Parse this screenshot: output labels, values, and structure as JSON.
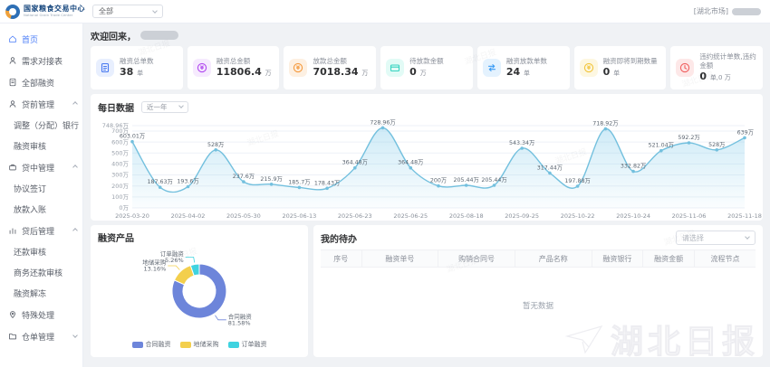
{
  "brand": {
    "title": "国家粮食交易中心",
    "subtitle": "National Grain Trade Center"
  },
  "topbar": {
    "org_filter": "全部",
    "market_tag": "[湖北市场]"
  },
  "sidebar": {
    "items": [
      {
        "label": "首页"
      },
      {
        "label": "需求对接表"
      },
      {
        "label": "全部融资"
      },
      {
        "label": "贷前管理"
      },
      {
        "label": "调整（分配）银行"
      },
      {
        "label": "融资审核"
      },
      {
        "label": "贷中管理"
      },
      {
        "label": "协议签订"
      },
      {
        "label": "放款入账"
      },
      {
        "label": "贷后管理"
      },
      {
        "label": "还款审核"
      },
      {
        "label": "商务还款审核"
      },
      {
        "label": "融资解冻"
      },
      {
        "label": "特殊处理"
      },
      {
        "label": "仓单管理"
      }
    ]
  },
  "welcome": {
    "text": "欢迎回来，"
  },
  "stats": [
    {
      "label": "融资总单数",
      "value": "38",
      "unit": "单",
      "color": "#4a7af0",
      "bg": "#e8effe"
    },
    {
      "label": "融资总金额",
      "value": "11806.4",
      "unit": "万",
      "color": "#b148ef",
      "bg": "#f6eafe"
    },
    {
      "label": "放款总金额",
      "value": "7018.34",
      "unit": "万",
      "color": "#f59a3e",
      "bg": "#fdf0e2"
    },
    {
      "label": "待放款金额",
      "value": "0",
      "unit": "万",
      "color": "#35d3c0",
      "bg": "#e2fbf6"
    },
    {
      "label": "融资放款单数",
      "value": "24",
      "unit": "单",
      "color": "#3b9cf5",
      "bg": "#e4f2fe"
    },
    {
      "label": "融资即将到期数量",
      "value": "0",
      "unit": "单",
      "color": "#f2c53c",
      "bg": "#fdf7e1"
    },
    {
      "label": "违约统计单数,违约金额",
      "value": "0",
      "unit": "单,0 万",
      "color": "#f05f5f",
      "bg": "#fde8e8"
    }
  ],
  "daily": {
    "title": "每日数据",
    "range_select": "近一年"
  },
  "product": {
    "title": "融资产品"
  },
  "todo": {
    "title": "我的待办",
    "select_placeholder": "请选择",
    "columns": [
      "序号",
      "融资单号",
      "购销合同号",
      "产品名称",
      "融资银行",
      "融资金额",
      "流程节点"
    ],
    "empty_text": "暂无数据"
  },
  "watermark": {
    "text": "湖北日报"
  },
  "chart_data": [
    {
      "type": "area",
      "title": "每日数据",
      "x_labels": [
        "2025-03-20",
        "2025-04-02",
        "2025-05-30",
        "2025-06-13",
        "2025-06-23",
        "2025-06-25",
        "2025-08-18",
        "2025-09-25",
        "2025-10-22",
        "2025-10-24",
        "2025-11-06",
        "2025-11-18"
      ],
      "values": [
        603.01,
        187.63,
        193.6,
        528,
        237.6,
        215.9,
        185.7,
        178.43,
        364.48,
        728.96,
        364.48,
        200,
        205.44,
        205.44,
        543.34,
        317.44,
        197.88,
        718.92,
        332.82,
        521.04,
        592.2,
        528,
        639
      ],
      "unit": "万",
      "ylim": [
        0,
        748.96
      ],
      "yticks": [
        0,
        100,
        200,
        300,
        400,
        500,
        600,
        700,
        748.96
      ],
      "line_color": "#73c0de",
      "area_color_top": "rgba(135,205,235,0.40)",
      "area_color_bottom": "rgba(135,205,235,0.04)",
      "grid": true,
      "legend_position": "none"
    },
    {
      "type": "pie",
      "title": "融资产品",
      "series": [
        {
          "name": "合同融资",
          "value": 81.58,
          "pct": "81.58%",
          "color": "#6d85da"
        },
        {
          "name": "地储采购",
          "value": 13.16,
          "pct": "13.16%",
          "color": "#f3cf4d"
        },
        {
          "name": "订单融资",
          "value": 5.26,
          "pct": "5.26%",
          "color": "#3fd3e0"
        }
      ],
      "legend_position": "bottom"
    }
  ]
}
